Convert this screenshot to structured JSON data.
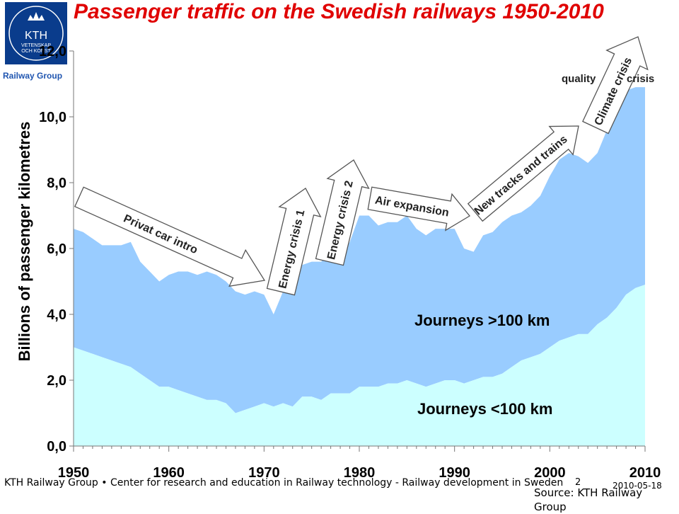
{
  "logo": {
    "text": "KTH",
    "sub1": "VETENSKAP",
    "sub2": "OCH KONST",
    "group": "Railway Group"
  },
  "title": "Passenger traffic on the Swedish railways 1950-2010",
  "footer": "KTH Railway Group • Center for research and education in Railway technology - Railway development in Sweden",
  "page_number": "2",
  "date": "2010-05-18",
  "source": "Source: KTH Railway Group",
  "colors": {
    "title": "#e00000",
    "lower_area": "#ccffff",
    "upper_area": "#99ccff",
    "arrow_fill": "#ffffff",
    "logo_bg": "#0a3c8c"
  },
  "chart_data": {
    "type": "area",
    "title": "Passenger traffic on the Swedish railways 1950-2010",
    "ylabel": "Billions of passenger kilometres",
    "xlabel": "",
    "xlim": [
      1950,
      2010
    ],
    "ylim": [
      0,
      12
    ],
    "ytick_labels": [
      "0,0",
      "2,0",
      "4,0",
      "6,0",
      "8,0",
      "10,0",
      "12,0"
    ],
    "xtick_labels": [
      "1950",
      "1960",
      "1970",
      "1980",
      "1990",
      "2000",
      "2010"
    ],
    "x": [
      1950,
      1951,
      1952,
      1953,
      1954,
      1955,
      1956,
      1957,
      1958,
      1959,
      1960,
      1961,
      1962,
      1963,
      1964,
      1965,
      1966,
      1967,
      1968,
      1969,
      1970,
      1971,
      1972,
      1973,
      1974,
      1975,
      1976,
      1977,
      1978,
      1979,
      1980,
      1981,
      1982,
      1983,
      1984,
      1985,
      1986,
      1987,
      1988,
      1989,
      1990,
      1991,
      1992,
      1993,
      1994,
      1995,
      1996,
      1997,
      1998,
      1999,
      2000,
      2001,
      2002,
      2003,
      2004,
      2005,
      2006,
      2007,
      2008,
      2009,
      2010
    ],
    "series": [
      {
        "name": "Journeys <100 km",
        "values": [
          3.0,
          2.9,
          2.8,
          2.7,
          2.6,
          2.5,
          2.4,
          2.2,
          2.0,
          1.8,
          1.8,
          1.7,
          1.6,
          1.5,
          1.4,
          1.4,
          1.3,
          1.0,
          1.1,
          1.2,
          1.3,
          1.2,
          1.3,
          1.2,
          1.5,
          1.5,
          1.4,
          1.6,
          1.6,
          1.6,
          1.8,
          1.8,
          1.8,
          1.9,
          1.9,
          2.0,
          1.9,
          1.8,
          1.9,
          2.0,
          2.0,
          1.9,
          2.0,
          2.1,
          2.1,
          2.2,
          2.4,
          2.6,
          2.7,
          2.8,
          3.0,
          3.2,
          3.3,
          3.4,
          3.4,
          3.7,
          3.9,
          4.2,
          4.6,
          4.8,
          4.9
        ]
      },
      {
        "name": "Journeys >100 km",
        "total": [
          6.6,
          6.5,
          6.3,
          6.1,
          6.1,
          6.1,
          6.2,
          5.6,
          5.3,
          5.0,
          5.2,
          5.3,
          5.3,
          5.2,
          5.3,
          5.2,
          5.0,
          4.7,
          4.6,
          4.7,
          4.6,
          4.0,
          4.7,
          4.6,
          5.5,
          5.6,
          5.6,
          5.9,
          5.7,
          6.2,
          7.0,
          7.0,
          6.7,
          6.8,
          6.8,
          7.0,
          6.6,
          6.4,
          6.6,
          6.6,
          6.6,
          6.0,
          5.9,
          6.4,
          6.5,
          6.8,
          7.0,
          7.1,
          7.3,
          7.6,
          8.2,
          8.7,
          8.9,
          8.8,
          8.6,
          8.9,
          9.6,
          10.2,
          10.8,
          10.9,
          10.9
        ]
      }
    ],
    "series_labels": [
      "Journeys >100 km",
      "Journeys <100 km"
    ],
    "annotations": [
      {
        "text": "Privat car intro",
        "type": "arrow"
      },
      {
        "text": "Energy crisis 1",
        "type": "arrow"
      },
      {
        "text": "Energy crisis 2",
        "type": "arrow"
      },
      {
        "text": "Air expansion",
        "type": "arrow"
      },
      {
        "text": "New tracks and trains",
        "type": "arrow"
      },
      {
        "text": "Climate crisis",
        "type": "arrow"
      },
      {
        "text": "quality",
        "type": "label"
      },
      {
        "text": "crisis",
        "type": "label"
      }
    ]
  }
}
